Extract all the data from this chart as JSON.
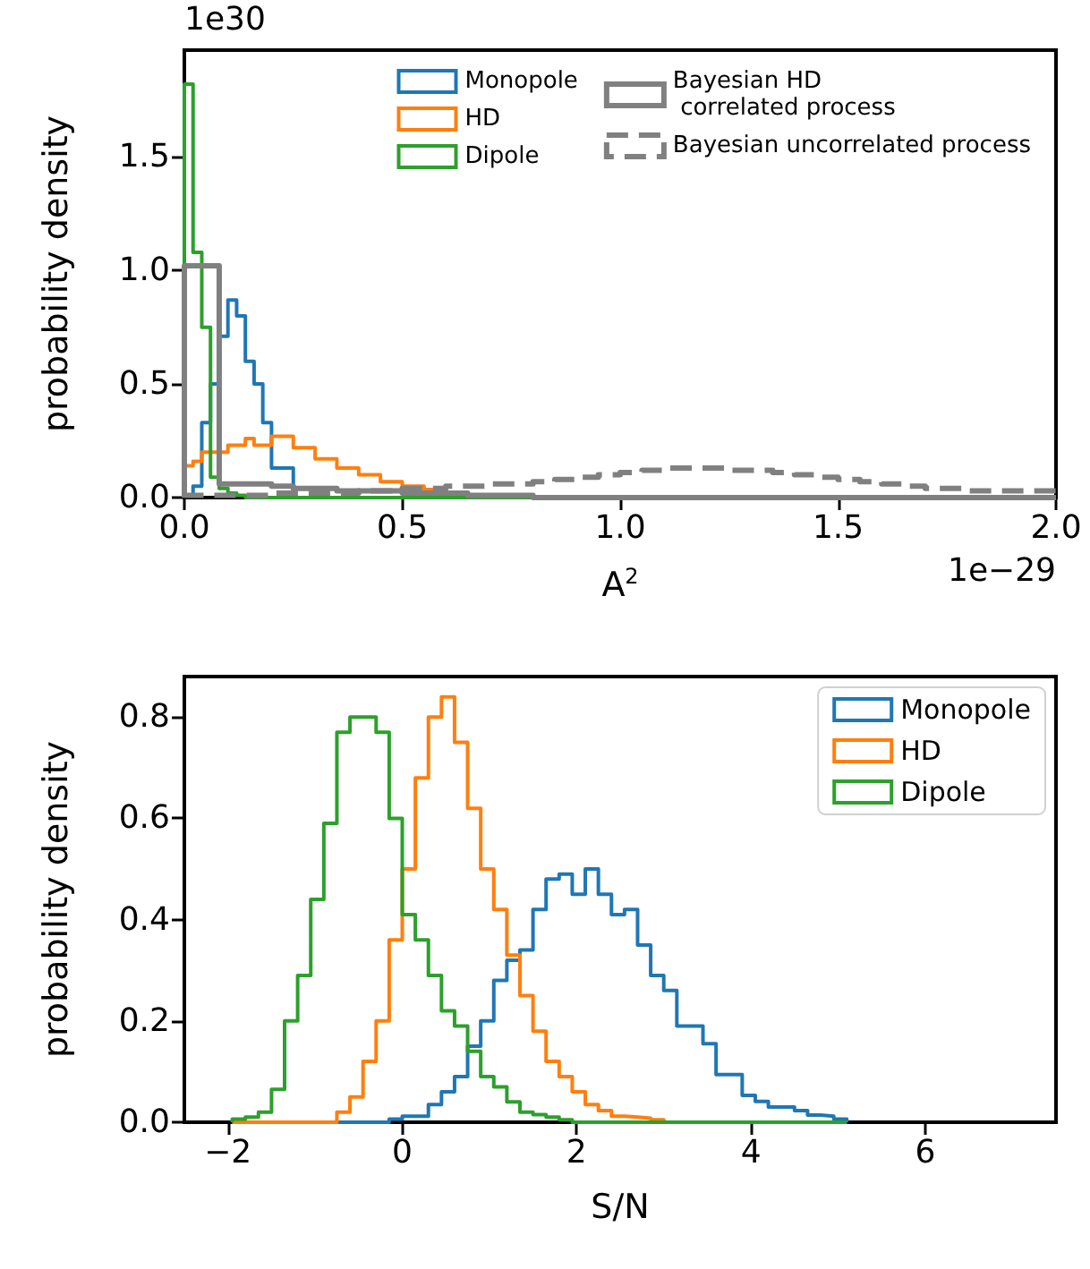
{
  "chart_data": [
    {
      "type": "histogram",
      "xlabel": "A$^{2}$",
      "ylabel": "probability density",
      "annotations": [
        "1e30",
        "1e−29"
      ],
      "xlim": [
        0,
        2
      ],
      "ylim": [
        0,
        1.97
      ],
      "xticks": [
        {
          "value": 0,
          "label": "0.0"
        },
        {
          "value": 0.5,
          "label": "0.5"
        },
        {
          "value": 1,
          "label": "1.0"
        },
        {
          "value": 1.5,
          "label": "1.5"
        },
        {
          "value": 2,
          "label": "2.0"
        }
      ],
      "yticks": [
        {
          "value": 0,
          "label": "0.0"
        },
        {
          "value": 0.5,
          "label": "0.5"
        },
        {
          "value": 1,
          "label": "1.0"
        },
        {
          "value": 1.5,
          "label": "1.5"
        }
      ],
      "legend": "top right",
      "bins": [
        0,
        0.02,
        0.04,
        0.06,
        0.08,
        0.1,
        0.12,
        0.14,
        0.16,
        0.18,
        0.2,
        0.25,
        0.3,
        0.35,
        0.4,
        0.45,
        0.5,
        0.55,
        0.6,
        0.65,
        0.7,
        0.75,
        0.8,
        0.85,
        0.9,
        0.95,
        1.0,
        1.05,
        1.1,
        1.15,
        1.2,
        1.25,
        1.3,
        1.35,
        1.4,
        1.45,
        1.5,
        1.55,
        1.6,
        1.65,
        1.7,
        1.75,
        1.8,
        1.85,
        1.9,
        1.95,
        2.0
      ],
      "series": [
        {
          "name": "Monopole",
          "color": "#1f77b4",
          "values": [
            0.01,
            0.05,
            0.33,
            0.5,
            0.71,
            0.87,
            0.8,
            0.6,
            0.5,
            0.33,
            0.13,
            0,
            0,
            0,
            0,
            0,
            0,
            0,
            0,
            0,
            0,
            0,
            0,
            0,
            0,
            0,
            0,
            0,
            0,
            0,
            0,
            0,
            0,
            0,
            0,
            0,
            0,
            0,
            0,
            0,
            0,
            0,
            0,
            0,
            0,
            0
          ]
        },
        {
          "name": "HD",
          "color": "#ff7f0e",
          "values": [
            0.14,
            0.16,
            0.2,
            0.2,
            0.2,
            0.23,
            0.23,
            0.26,
            0.23,
            0.23,
            0.27,
            0.22,
            0.17,
            0.13,
            0.1,
            0.07,
            0.05,
            0.035,
            0.02,
            0,
            0,
            0,
            0,
            0,
            0,
            0,
            0,
            0,
            0,
            0,
            0,
            0,
            0,
            0,
            0,
            0,
            0,
            0,
            0,
            0,
            0,
            0,
            0,
            0,
            0,
            0
          ]
        },
        {
          "name": "Dipole",
          "color": "#2ca02c",
          "values": [
            1.82,
            1.08,
            0.75,
            0.09,
            0.04,
            0.02,
            0.01,
            0,
            0,
            0,
            0,
            0,
            0,
            0,
            0,
            0,
            0,
            0,
            0,
            0,
            0,
            0,
            0,
            0,
            0,
            0,
            0,
            0,
            0,
            0,
            0,
            0,
            0,
            0,
            0,
            0,
            0,
            0,
            0,
            0,
            0,
            0,
            0,
            0,
            0,
            0
          ]
        },
        {
          "name": "Bayesian HD\n correlated process",
          "color": "#808080",
          "line_style": "solid",
          "values": [
            1.02,
            1.02,
            1.02,
            1.02,
            0.06,
            0.06,
            0.06,
            0.06,
            0.06,
            0.06,
            0.05,
            0.04,
            0.04,
            0.03,
            0.03,
            0.03,
            0.02,
            0.02,
            0.02,
            0.01,
            0.01,
            0.01,
            0,
            0,
            0,
            0,
            0,
            0,
            0,
            0,
            0,
            0,
            0,
            0,
            0,
            0,
            0,
            0,
            0,
            0,
            0,
            0,
            0,
            0,
            0,
            0
          ]
        },
        {
          "name": "Bayesian uncorrelated process",
          "color": "#808080",
          "line_style": "dashed",
          "values": [
            0.01,
            0.01,
            0.01,
            0.01,
            0.01,
            0.01,
            0.01,
            0.01,
            0.01,
            0.01,
            0.02,
            0.02,
            0.02,
            0.02,
            0.03,
            0.03,
            0.04,
            0.04,
            0.05,
            0.05,
            0.06,
            0.06,
            0.07,
            0.08,
            0.09,
            0.1,
            0.11,
            0.12,
            0.13,
            0.13,
            0.13,
            0.12,
            0.12,
            0.11,
            0.1,
            0.09,
            0.08,
            0.07,
            0.06,
            0.05,
            0.04,
            0.04,
            0.03,
            0.03,
            0.03,
            0.03
          ]
        }
      ]
    },
    {
      "type": "histogram",
      "xlabel": "S/N",
      "ylabel": "probability density",
      "xlim": [
        -2.5,
        7.5
      ],
      "ylim": [
        0,
        0.88
      ],
      "xticks": [
        {
          "value": -2,
          "label": "−2"
        },
        0,
        2,
        4,
        6
      ],
      "yticks": [
        {
          "value": 0,
          "label": "0.0"
        },
        {
          "value": 0.2,
          "label": "0.2"
        },
        {
          "value": 0.4,
          "label": "0.4"
        },
        {
          "value": 0.6,
          "label": "0.6"
        },
        {
          "value": 0.8,
          "label": "0.8"
        }
      ],
      "legend": "top right",
      "bins": [
        -1.95,
        -1.8,
        -1.65,
        -1.5,
        -1.35,
        -1.2,
        -1.05,
        -0.9,
        -0.75,
        -0.6,
        -0.45,
        -0.3,
        -0.15,
        0,
        0.15,
        0.3,
        0.45,
        0.6,
        0.75,
        0.9,
        1.05,
        1.2,
        1.35,
        1.5,
        1.65,
        1.8,
        1.95,
        2.1,
        2.25,
        2.4,
        2.55,
        2.7,
        2.85,
        3.0,
        3.15,
        3.3,
        3.45,
        3.6,
        3.75,
        3.9,
        4.05,
        4.2,
        4.35,
        4.5,
        4.65,
        4.8,
        4.95,
        5.1
      ],
      "series": [
        {
          "name": "Monopole",
          "color": "#1f77b4",
          "values": [
            0,
            0,
            0,
            0,
            0,
            0,
            0,
            0,
            0,
            0,
            0,
            0,
            0.006,
            0.012,
            0.012,
            0.035,
            0.06,
            0.09,
            0.15,
            0.2,
            0.28,
            0.32,
            0.34,
            0.42,
            0.48,
            0.49,
            0.45,
            0.5,
            0.45,
            0.41,
            0.42,
            0.35,
            0.29,
            0.26,
            0.19,
            0.19,
            0.155,
            0.094,
            0.094,
            0.053,
            0.041,
            0.03,
            0.03,
            0.023,
            0.014,
            0.012,
            0.006
          ]
        },
        {
          "name": "HD",
          "color": "#ff7f0e",
          "values": [
            0,
            0,
            0,
            0,
            0,
            0,
            0,
            0,
            0.02,
            0.05,
            0.12,
            0.2,
            0.36,
            0.5,
            0.68,
            0.8,
            0.84,
            0.75,
            0.62,
            0.5,
            0.42,
            0.33,
            0.25,
            0.18,
            0.12,
            0.09,
            0.06,
            0.035,
            0.023,
            0.012,
            0.01,
            0.008,
            0.005,
            0,
            0,
            0,
            0,
            0,
            0,
            0,
            0,
            0,
            0,
            0,
            0,
            0,
            0
          ]
        },
        {
          "name": "Dipole",
          "color": "#2ca02c",
          "values": [
            0.006,
            0.01,
            0.02,
            0.065,
            0.2,
            0.29,
            0.44,
            0.59,
            0.77,
            0.8,
            0.8,
            0.77,
            0.6,
            0.41,
            0.36,
            0.29,
            0.22,
            0.19,
            0.14,
            0.09,
            0.07,
            0.04,
            0.02,
            0.015,
            0.01,
            0.005,
            0,
            0,
            0,
            0,
            0,
            0,
            0,
            0,
            0,
            0,
            0,
            0,
            0,
            0,
            0,
            0,
            0,
            0,
            0,
            0,
            0
          ]
        }
      ]
    }
  ]
}
